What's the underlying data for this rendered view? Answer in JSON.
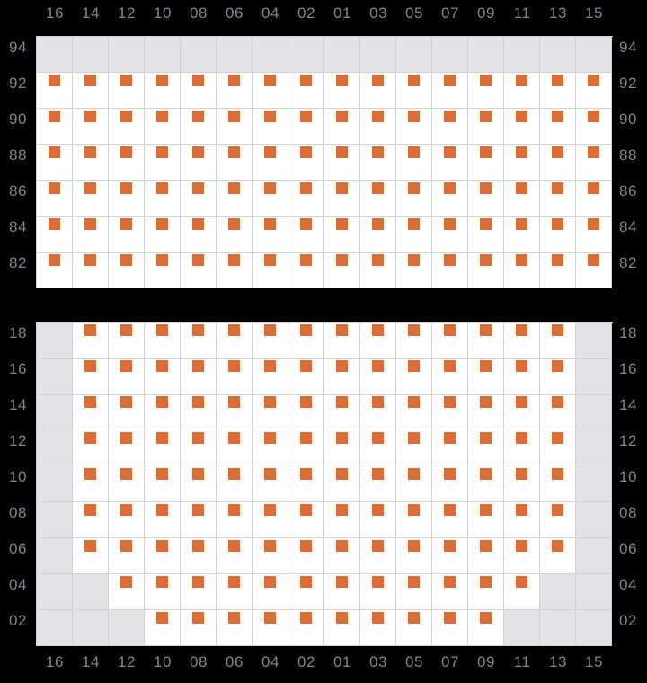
{
  "colors": {
    "background": "#000000",
    "seat": "#dd6c35",
    "cell": "#ffffff",
    "blocked": "#e3e3e6",
    "grid_line": "#d2d2d7",
    "label": "#85858d"
  },
  "column_labels": [
    "16",
    "14",
    "12",
    "10",
    "08",
    "06",
    "04",
    "02",
    "01",
    "03",
    "05",
    "07",
    "09",
    "11",
    "13",
    "15"
  ],
  "sections": [
    {
      "name": "upper",
      "rows": [
        {
          "label": "94",
          "cells": "0000000000000000"
        },
        {
          "label": "92",
          "cells": "1111111111111111"
        },
        {
          "label": "90",
          "cells": "1111111111111111"
        },
        {
          "label": "88",
          "cells": "1111111111111111"
        },
        {
          "label": "86",
          "cells": "1111111111111111"
        },
        {
          "label": "84",
          "cells": "1111111111111111"
        },
        {
          "label": "82",
          "cells": "1111111111111111"
        }
      ]
    },
    {
      "name": "lower",
      "rows": [
        {
          "label": "18",
          "cells": "0111111111111110"
        },
        {
          "label": "16",
          "cells": "0111111111111110"
        },
        {
          "label": "14",
          "cells": "0111111111111110"
        },
        {
          "label": "12",
          "cells": "0111111111111110"
        },
        {
          "label": "10",
          "cells": "0111111111111110"
        },
        {
          "label": "08",
          "cells": "0111111111111110"
        },
        {
          "label": "06",
          "cells": "0111111111111110"
        },
        {
          "label": "04",
          "cells": "0011111111111100"
        },
        {
          "label": "02",
          "cells": "0001111111111000"
        }
      ]
    }
  ]
}
